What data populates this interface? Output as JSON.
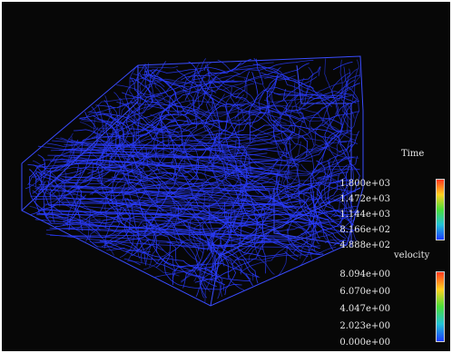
{
  "legend_time": {
    "title": "Time",
    "ticks": [
      "1.800e+03",
      "1.472e+03",
      "1.144e+03",
      "8.166e+02",
      "4.888e+02"
    ]
  },
  "legend_velocity": {
    "title": "velocity",
    "ticks": [
      "8.094e+00",
      "6.070e+00",
      "4.047e+00",
      "2.023e+00",
      "0.000e+00"
    ]
  },
  "colors": {
    "background": "#070707",
    "streamline": "#2a3cff",
    "outline": "#3a4cff"
  }
}
